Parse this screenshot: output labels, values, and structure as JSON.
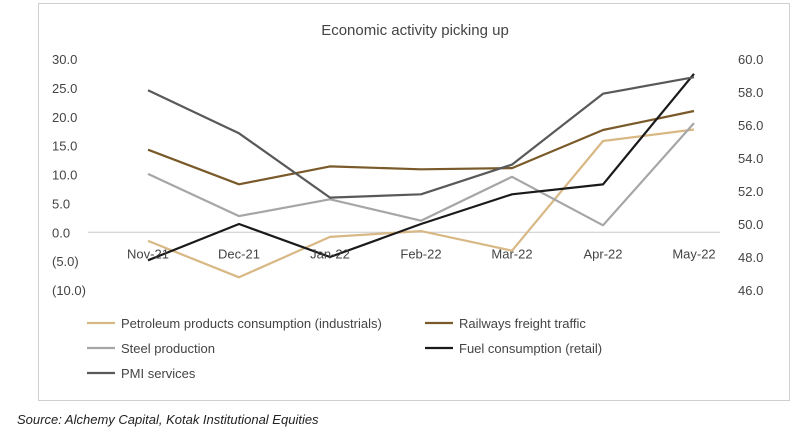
{
  "chart_data": {
    "type": "line",
    "title": "Economic activity picking up",
    "categories": [
      "Nov-21",
      "Dec-21",
      "Jan-22",
      "Feb-22",
      "Mar-22",
      "Apr-22",
      "May-22"
    ],
    "left_axis": {
      "min": -10,
      "max": 30,
      "ticks": [
        "30.0",
        "25.0",
        "20.0",
        "15.0",
        "10.0",
        "5.0",
        "0.0",
        "(5.0)",
        "(10.0)"
      ]
    },
    "right_axis": {
      "min": 46,
      "max": 60,
      "ticks": [
        "60.0",
        "58.0",
        "56.0",
        "54.0",
        "52.0",
        "50.0",
        "48.0",
        "46.0"
      ]
    },
    "series": [
      {
        "name": "Petroleum products consumption (industrials)",
        "color": "#d8b885",
        "axis": "left",
        "values": [
          -1.5,
          -7.8,
          -0.8,
          0.2,
          -3.2,
          15.8,
          17.8
        ]
      },
      {
        "name": "Railways freight traffic",
        "color": "#7a5a2a",
        "axis": "left",
        "values": [
          14.3,
          8.3,
          11.4,
          10.9,
          11.1,
          17.7,
          21.0
        ]
      },
      {
        "name": "Steel production",
        "color": "#a6a6a6",
        "axis": "left",
        "values": [
          10.1,
          2.8,
          5.7,
          2.0,
          9.6,
          1.2,
          18.9
        ]
      },
      {
        "name": "Fuel consumption (retail)",
        "color": "#1a1a1a",
        "axis": "right",
        "values": [
          47.8,
          50.0,
          48.0,
          50.0,
          51.8,
          52.4,
          59.1
        ]
      },
      {
        "name": "PMI services",
        "color": "#595959",
        "axis": "right",
        "values": [
          58.1,
          55.5,
          51.6,
          51.8,
          53.6,
          57.9,
          58.9
        ]
      }
    ],
    "legend_position": "bottom",
    "grid": false
  },
  "source_text": "Source: Alchemy Capital, Kotak Institutional Equities"
}
